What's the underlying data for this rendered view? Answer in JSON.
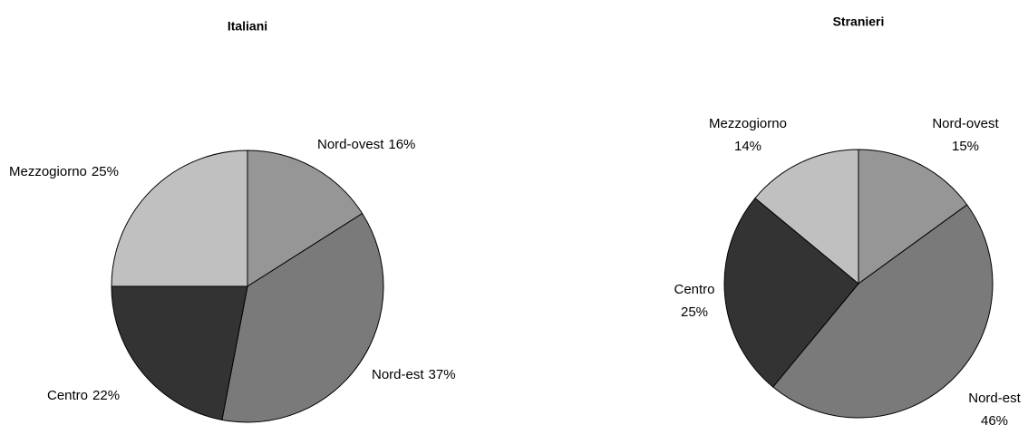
{
  "chart_data": [
    {
      "type": "pie",
      "title": "Italiani",
      "categories": [
        "Nord-ovest",
        "Nord-est",
        "Centro",
        "Mezzogiorno"
      ],
      "values": [
        16,
        37,
        22,
        25
      ],
      "value_labels": [
        "16%",
        "37%",
        "22%",
        "25%"
      ],
      "colors": [
        "#969696",
        "#7a7a7a",
        "#333333",
        "#c0c0c0"
      ]
    },
    {
      "type": "pie",
      "title": "Stranieri",
      "categories": [
        "Nord-ovest",
        "Nord-est",
        "Centro",
        "Mezzogiorno"
      ],
      "values": [
        15,
        46,
        25,
        14
      ],
      "value_labels": [
        "15%",
        "46%",
        "25%",
        "14%"
      ],
      "colors": [
        "#969696",
        "#7a7a7a",
        "#333333",
        "#c0c0c0"
      ]
    }
  ]
}
